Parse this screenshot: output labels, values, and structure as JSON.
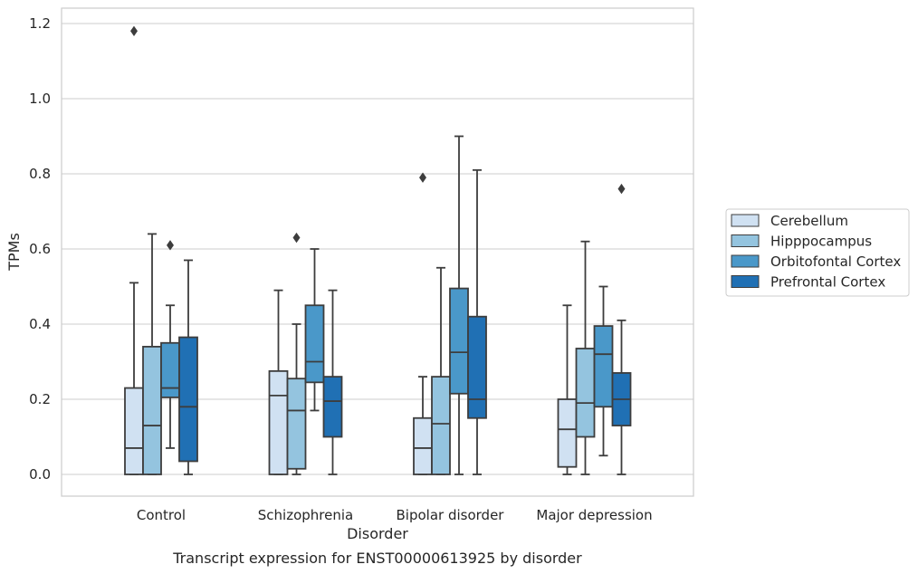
{
  "chart_data": {
    "type": "box",
    "title": "",
    "caption": "Transcript expression for ENST00000613925 by disorder",
    "xlabel": "Disorder",
    "ylabel": "TPMs",
    "ylim": [
      -0.055,
      1.24
    ],
    "yticks": [
      "0.0",
      "0.2",
      "0.4",
      "0.6",
      "0.8",
      "1.0",
      "1.2"
    ],
    "ytick_values": [
      0.0,
      0.2,
      0.4,
      0.6,
      0.8,
      1.0,
      1.2
    ],
    "grid": true,
    "legend_position": "right",
    "categories": [
      "Control",
      "Schizophrenia",
      "Bipolar disorder",
      "Major depression"
    ],
    "series": [
      {
        "name": "Cerebellum",
        "color": "#d0e1f2",
        "boxes": [
          {
            "whisker_low": 0.0,
            "q1": 0.0,
            "median": 0.07,
            "q3": 0.23,
            "whisker_high": 0.51,
            "outliers": [
              1.18
            ]
          },
          {
            "whisker_low": 0.0,
            "q1": 0.0,
            "median": 0.21,
            "q3": 0.275,
            "whisker_high": 0.49,
            "outliers": []
          },
          {
            "whisker_low": 0.0,
            "q1": 0.0,
            "median": 0.07,
            "q3": 0.15,
            "whisker_high": 0.26,
            "outliers": [
              0.79
            ]
          },
          {
            "whisker_low": 0.0,
            "q1": 0.02,
            "median": 0.12,
            "q3": 0.2,
            "whisker_high": 0.45,
            "outliers": []
          }
        ]
      },
      {
        "name": "Hipppocampus",
        "color": "#94c4df",
        "boxes": [
          {
            "whisker_low": 0.0,
            "q1": 0.0,
            "median": 0.13,
            "q3": 0.34,
            "whisker_high": 0.64,
            "outliers": []
          },
          {
            "whisker_low": 0.0,
            "q1": 0.015,
            "median": 0.17,
            "q3": 0.255,
            "whisker_high": 0.4,
            "outliers": [
              0.63
            ]
          },
          {
            "whisker_low": 0.0,
            "q1": 0.0,
            "median": 0.135,
            "q3": 0.26,
            "whisker_high": 0.55,
            "outliers": []
          },
          {
            "whisker_low": 0.0,
            "q1": 0.1,
            "median": 0.19,
            "q3": 0.335,
            "whisker_high": 0.62,
            "outliers": []
          }
        ]
      },
      {
        "name": "Orbitofontal Cortex",
        "color": "#4a98c9",
        "boxes": [
          {
            "whisker_low": 0.07,
            "q1": 0.205,
            "median": 0.23,
            "q3": 0.35,
            "whisker_high": 0.45,
            "outliers": [
              0.61
            ]
          },
          {
            "whisker_low": 0.17,
            "q1": 0.245,
            "median": 0.3,
            "q3": 0.45,
            "whisker_high": 0.6,
            "outliers": []
          },
          {
            "whisker_low": 0.0,
            "q1": 0.215,
            "median": 0.325,
            "q3": 0.495,
            "whisker_high": 0.9,
            "outliers": []
          },
          {
            "whisker_low": 0.05,
            "q1": 0.18,
            "median": 0.32,
            "q3": 0.395,
            "whisker_high": 0.5,
            "outliers": []
          }
        ]
      },
      {
        "name": "Prefrontal Cortex",
        "color": "#2070b4",
        "boxes": [
          {
            "whisker_low": 0.0,
            "q1": 0.035,
            "median": 0.18,
            "q3": 0.365,
            "whisker_high": 0.57,
            "outliers": []
          },
          {
            "whisker_low": 0.0,
            "q1": 0.1,
            "median": 0.195,
            "q3": 0.26,
            "whisker_high": 0.49,
            "outliers": []
          },
          {
            "whisker_low": 0.0,
            "q1": 0.15,
            "median": 0.2,
            "q3": 0.42,
            "whisker_high": 0.81,
            "outliers": []
          },
          {
            "whisker_low": 0.0,
            "q1": 0.13,
            "median": 0.2,
            "q3": 0.27,
            "whisker_high": 0.41,
            "outliers": [
              0.76
            ]
          }
        ]
      }
    ]
  }
}
